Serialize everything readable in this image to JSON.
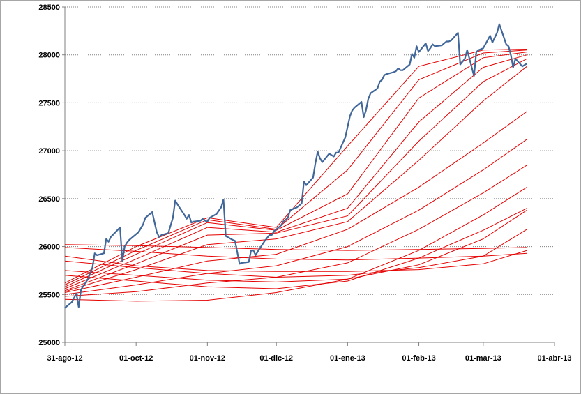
{
  "chart_data": {
    "type": "line",
    "title": "",
    "xlabel": "",
    "ylabel": "",
    "ylim": [
      25000,
      28500
    ],
    "yticks": [
      25000,
      25500,
      26000,
      26500,
      27000,
      27500,
      28000,
      28500
    ],
    "xlim": [
      "2012-08-31",
      "2013-04-01"
    ],
    "xticks": [
      {
        "date": "2012-08-31",
        "label": "31-ago-12"
      },
      {
        "date": "2012-10-01",
        "label": "01-oct-12"
      },
      {
        "date": "2012-11-01",
        "label": "01-nov-12"
      },
      {
        "date": "2012-12-01",
        "label": "01-dic-12"
      },
      {
        "date": "2013-01-01",
        "label": "01-ene-13"
      },
      {
        "date": "2013-02-01",
        "label": "01-feb-13"
      },
      {
        "date": "2013-03-01",
        "label": "01-mar-13"
      },
      {
        "date": "2013-04-01",
        "label": "01-abr-13"
      }
    ],
    "grid": {
      "horizontal": true,
      "vertical": false,
      "style": "dotted"
    },
    "legend": "none",
    "colors": {
      "price": "#41679a",
      "averages": "#e60000"
    },
    "price_series": {
      "points": [
        [
          "2012-08-31",
          25360
        ],
        [
          "2012-09-03",
          25420
        ],
        [
          "2012-09-05",
          25510
        ],
        [
          "2012-09-06",
          25370
        ],
        [
          "2012-09-07",
          25550
        ],
        [
          "2012-09-10",
          25660
        ],
        [
          "2012-09-12",
          25780
        ],
        [
          "2012-09-13",
          25930
        ],
        [
          "2012-09-14",
          25910
        ],
        [
          "2012-09-17",
          25930
        ],
        [
          "2012-09-18",
          26080
        ],
        [
          "2012-09-19",
          26050
        ],
        [
          "2012-09-20",
          26100
        ],
        [
          "2012-09-24",
          26200
        ],
        [
          "2012-09-25",
          25850
        ],
        [
          "2012-09-26",
          26000
        ],
        [
          "2012-09-27",
          26040
        ],
        [
          "2012-09-28",
          26070
        ],
        [
          "2012-10-02",
          26150
        ],
        [
          "2012-10-04",
          26230
        ],
        [
          "2012-10-05",
          26300
        ],
        [
          "2012-10-08",
          26360
        ],
        [
          "2012-10-10",
          26150
        ],
        [
          "2012-10-11",
          26100
        ],
        [
          "2012-10-12",
          26120
        ],
        [
          "2012-10-15",
          26140
        ],
        [
          "2012-10-17",
          26300
        ],
        [
          "2012-10-18",
          26480
        ],
        [
          "2012-10-19",
          26440
        ],
        [
          "2012-10-22",
          26330
        ],
        [
          "2012-10-23",
          26290
        ],
        [
          "2012-10-24",
          26330
        ],
        [
          "2012-10-25",
          26250
        ],
        [
          "2012-10-26",
          26260
        ],
        [
          "2012-10-29",
          26270
        ],
        [
          "2012-10-30",
          26290
        ],
        [
          "2012-10-31",
          26270
        ],
        [
          "2012-11-01",
          26260
        ],
        [
          "2012-11-02",
          26300
        ],
        [
          "2012-11-05",
          26340
        ],
        [
          "2012-11-07",
          26410
        ],
        [
          "2012-11-08",
          26490
        ],
        [
          "2012-11-09",
          26110
        ],
        [
          "2012-11-12",
          26070
        ],
        [
          "2012-11-13",
          26060
        ],
        [
          "2012-11-15",
          25820
        ],
        [
          "2012-11-16",
          25830
        ],
        [
          "2012-11-19",
          25840
        ],
        [
          "2012-11-20",
          25960
        ],
        [
          "2012-11-21",
          25960
        ],
        [
          "2012-11-22",
          25910
        ],
        [
          "2012-11-23",
          25950
        ],
        [
          "2012-11-26",
          26060
        ],
        [
          "2012-11-28",
          26120
        ],
        [
          "2012-11-29",
          26120
        ],
        [
          "2012-11-30",
          26160
        ],
        [
          "2012-12-03",
          26220
        ],
        [
          "2012-12-04",
          26260
        ],
        [
          "2012-12-05",
          26280
        ],
        [
          "2012-12-06",
          26300
        ],
        [
          "2012-12-07",
          26380
        ],
        [
          "2012-12-10",
          26410
        ],
        [
          "2012-12-11",
          26430
        ],
        [
          "2012-12-12",
          26450
        ],
        [
          "2012-12-13",
          26680
        ],
        [
          "2012-12-14",
          26640
        ],
        [
          "2012-12-17",
          26720
        ],
        [
          "2012-12-18",
          26870
        ],
        [
          "2012-12-19",
          26990
        ],
        [
          "2012-12-20",
          26920
        ],
        [
          "2012-12-21",
          26880
        ],
        [
          "2012-12-24",
          26970
        ],
        [
          "2012-12-26",
          26940
        ],
        [
          "2012-12-27",
          26980
        ],
        [
          "2012-12-28",
          26980
        ],
        [
          "2012-12-31",
          27140
        ],
        [
          "2013-01-02",
          27360
        ],
        [
          "2013-01-03",
          27420
        ],
        [
          "2013-01-04",
          27450
        ],
        [
          "2013-01-07",
          27510
        ],
        [
          "2013-01-08",
          27350
        ],
        [
          "2013-01-09",
          27420
        ],
        [
          "2013-01-10",
          27540
        ],
        [
          "2013-01-11",
          27600
        ],
        [
          "2013-01-14",
          27650
        ],
        [
          "2013-01-15",
          27720
        ],
        [
          "2013-01-16",
          27740
        ],
        [
          "2013-01-17",
          27790
        ],
        [
          "2013-01-18",
          27800
        ],
        [
          "2013-01-21",
          27820
        ],
        [
          "2013-01-22",
          27830
        ],
        [
          "2013-01-23",
          27860
        ],
        [
          "2013-01-24",
          27840
        ],
        [
          "2013-01-25",
          27840
        ],
        [
          "2013-01-28",
          27900
        ],
        [
          "2013-01-29",
          28010
        ],
        [
          "2013-01-30",
          27970
        ],
        [
          "2013-01-31",
          28090
        ],
        [
          "2013-02-01",
          28030
        ],
        [
          "2013-02-04",
          28120
        ],
        [
          "2013-02-05",
          28040
        ],
        [
          "2013-02-06",
          28070
        ],
        [
          "2013-02-07",
          28110
        ],
        [
          "2013-02-08",
          28090
        ],
        [
          "2013-02-11",
          28100
        ],
        [
          "2013-02-12",
          28120
        ],
        [
          "2013-02-13",
          28140
        ],
        [
          "2013-02-14",
          28140
        ],
        [
          "2013-02-15",
          28150
        ],
        [
          "2013-02-18",
          28230
        ],
        [
          "2013-02-19",
          27900
        ],
        [
          "2013-02-20",
          27930
        ],
        [
          "2013-02-21",
          27960
        ],
        [
          "2013-02-22",
          28050
        ],
        [
          "2013-02-25",
          27780
        ],
        [
          "2013-02-26",
          28030
        ],
        [
          "2013-02-27",
          28050
        ],
        [
          "2013-02-28",
          28060
        ],
        [
          "2013-03-01",
          28070
        ],
        [
          "2013-03-04",
          28200
        ],
        [
          "2013-03-05",
          28130
        ],
        [
          "2013-03-06",
          28180
        ],
        [
          "2013-03-07",
          28230
        ],
        [
          "2013-03-08",
          28320
        ],
        [
          "2013-03-11",
          28110
        ],
        [
          "2013-03-12",
          28090
        ],
        [
          "2013-03-13",
          28000
        ],
        [
          "2013-03-14",
          27870
        ],
        [
          "2013-03-15",
          27960
        ],
        [
          "2013-03-18",
          27880
        ],
        [
          "2013-03-20",
          27910
        ]
      ]
    },
    "average_series": [
      {
        "points": [
          [
            "2012-08-31",
            25990
          ],
          [
            "2012-10-01",
            25950
          ],
          [
            "2012-11-01",
            25900
          ],
          [
            "2012-12-01",
            25870
          ],
          [
            "2013-01-01",
            25860
          ],
          [
            "2013-02-01",
            25880
          ],
          [
            "2013-03-01",
            25900
          ],
          [
            "2013-03-20",
            25930
          ]
        ]
      },
      {
        "points": [
          [
            "2012-08-31",
            26020
          ],
          [
            "2012-10-01",
            26010
          ],
          [
            "2012-11-01",
            25990
          ],
          [
            "2012-12-01",
            25970
          ],
          [
            "2013-01-01",
            25960
          ],
          [
            "2013-02-01",
            25970
          ],
          [
            "2013-03-01",
            25980
          ],
          [
            "2013-03-20",
            25990
          ]
        ]
      },
      {
        "points": [
          [
            "2012-08-31",
            25900
          ],
          [
            "2012-10-01",
            25800
          ],
          [
            "2012-11-01",
            25750
          ],
          [
            "2012-12-01",
            25740
          ],
          [
            "2013-01-01",
            25740
          ],
          [
            "2013-02-01",
            25760
          ],
          [
            "2013-03-01",
            25820
          ],
          [
            "2013-03-20",
            25960
          ]
        ]
      },
      {
        "points": [
          [
            "2012-08-31",
            25850
          ],
          [
            "2012-10-01",
            25780
          ],
          [
            "2012-11-01",
            25720
          ],
          [
            "2012-12-01",
            25680
          ],
          [
            "2013-01-01",
            25700
          ],
          [
            "2013-02-01",
            25780
          ],
          [
            "2013-03-01",
            25900
          ],
          [
            "2013-03-20",
            26180
          ]
        ]
      },
      {
        "points": [
          [
            "2012-08-31",
            25750
          ],
          [
            "2012-10-01",
            25700
          ],
          [
            "2012-11-01",
            25650
          ],
          [
            "2012-12-01",
            25630
          ],
          [
            "2013-01-01",
            25660
          ],
          [
            "2013-02-01",
            25810
          ],
          [
            "2013-03-01",
            26080
          ],
          [
            "2013-03-20",
            26380
          ]
        ]
      },
      {
        "points": [
          [
            "2012-08-31",
            25700
          ],
          [
            "2012-10-01",
            25640
          ],
          [
            "2012-11-01",
            25580
          ],
          [
            "2012-12-01",
            25560
          ],
          [
            "2013-01-01",
            25640
          ],
          [
            "2013-02-01",
            25880
          ],
          [
            "2013-03-01",
            26170
          ],
          [
            "2013-03-20",
            26400
          ]
        ]
      },
      {
        "points": [
          [
            "2012-08-31",
            25450
          ],
          [
            "2012-10-01",
            25430
          ],
          [
            "2012-11-01",
            25440
          ],
          [
            "2012-12-01",
            25520
          ],
          [
            "2013-01-01",
            25660
          ],
          [
            "2013-02-01",
            25960
          ],
          [
            "2013-03-01",
            26330
          ],
          [
            "2013-03-20",
            26620
          ]
        ]
      },
      {
        "points": [
          [
            "2012-08-31",
            25480
          ],
          [
            "2012-10-01",
            25530
          ],
          [
            "2012-11-01",
            25620
          ],
          [
            "2012-12-01",
            25680
          ],
          [
            "2013-01-01",
            25830
          ],
          [
            "2013-02-01",
            26180
          ],
          [
            "2013-03-01",
            26560
          ],
          [
            "2013-03-20",
            26850
          ]
        ]
      },
      {
        "points": [
          [
            "2012-08-31",
            25500
          ],
          [
            "2012-10-01",
            25600
          ],
          [
            "2012-11-01",
            25720
          ],
          [
            "2012-12-01",
            25800
          ],
          [
            "2013-01-01",
            26000
          ],
          [
            "2013-02-01",
            26380
          ],
          [
            "2013-03-01",
            26800
          ],
          [
            "2013-03-20",
            27120
          ]
        ]
      },
      {
        "points": [
          [
            "2012-08-31",
            25520
          ],
          [
            "2012-10-01",
            25680
          ],
          [
            "2012-11-01",
            25850
          ],
          [
            "2012-12-01",
            25920
          ],
          [
            "2013-01-01",
            26180
          ],
          [
            "2013-02-01",
            26620
          ],
          [
            "2013-03-01",
            27080
          ],
          [
            "2013-03-20",
            27410
          ]
        ]
      },
      {
        "points": [
          [
            "2012-08-31",
            25530
          ],
          [
            "2012-10-01",
            25760
          ],
          [
            "2012-11-01",
            26020
          ],
          [
            "2012-12-01",
            26080
          ],
          [
            "2013-01-01",
            26260
          ],
          [
            "2013-02-01",
            26900
          ],
          [
            "2013-03-01",
            27520
          ],
          [
            "2013-03-20",
            27880
          ]
        ]
      },
      {
        "points": [
          [
            "2012-08-31",
            25540
          ],
          [
            "2012-10-01",
            25820
          ],
          [
            "2012-11-01",
            26120
          ],
          [
            "2012-12-01",
            26140
          ],
          [
            "2013-01-01",
            26320
          ],
          [
            "2013-02-01",
            27100
          ],
          [
            "2013-03-01",
            27720
          ],
          [
            "2013-03-20",
            27960
          ]
        ]
      },
      {
        "points": [
          [
            "2012-08-31",
            25560
          ],
          [
            "2012-10-01",
            25870
          ],
          [
            "2012-11-01",
            26200
          ],
          [
            "2012-12-01",
            26150
          ],
          [
            "2013-01-01",
            26400
          ],
          [
            "2013-02-01",
            27300
          ],
          [
            "2013-03-01",
            27870
          ],
          [
            "2013-03-20",
            28000
          ]
        ]
      },
      {
        "points": [
          [
            "2012-08-31",
            25580
          ],
          [
            "2012-10-01",
            25920
          ],
          [
            "2012-11-01",
            26250
          ],
          [
            "2012-12-01",
            26170
          ],
          [
            "2013-01-01",
            26550
          ],
          [
            "2013-02-01",
            27550
          ],
          [
            "2013-03-01",
            27970
          ],
          [
            "2013-03-20",
            28030
          ]
        ]
      },
      {
        "points": [
          [
            "2012-08-31",
            25600
          ],
          [
            "2012-10-01",
            25960
          ],
          [
            "2012-11-01",
            26280
          ],
          [
            "2012-12-01",
            26180
          ],
          [
            "2013-01-01",
            26800
          ],
          [
            "2013-02-01",
            27740
          ],
          [
            "2013-03-01",
            28020
          ],
          [
            "2013-03-20",
            28050
          ]
        ]
      },
      {
        "points": [
          [
            "2012-08-31",
            25620
          ],
          [
            "2012-10-01",
            26000
          ],
          [
            "2012-11-01",
            26300
          ],
          [
            "2012-12-01",
            26200
          ],
          [
            "2013-01-01",
            27050
          ],
          [
            "2013-02-01",
            27880
          ],
          [
            "2013-03-01",
            28050
          ],
          [
            "2013-03-20",
            28060
          ]
        ]
      }
    ]
  }
}
